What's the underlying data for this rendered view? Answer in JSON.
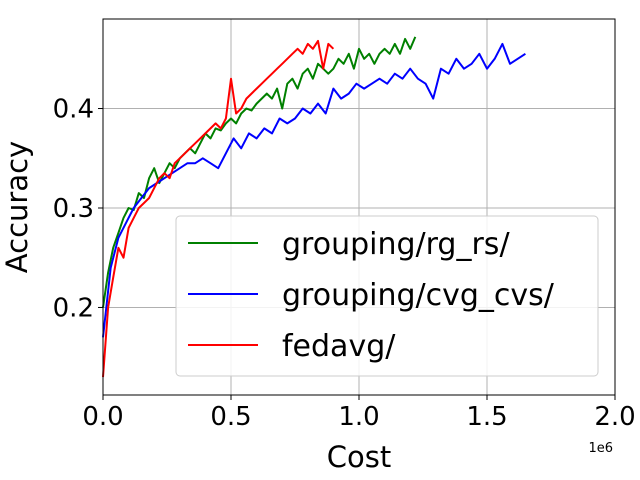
{
  "chart_data": {
    "type": "line",
    "title": "",
    "xlabel": "Cost",
    "ylabel": "Accuracy",
    "x_offset_label": "1e6",
    "xlim": [
      0.0,
      2.0
    ],
    "ylim": [
      0.112,
      0.49
    ],
    "xticks": [
      0.0,
      0.5,
      1.0,
      1.5,
      2.0
    ],
    "xtick_labels": [
      "0.0",
      "0.5",
      "1.0",
      "1.5",
      "2.0"
    ],
    "yticks": [
      0.2,
      0.3,
      0.4
    ],
    "ytick_labels": [
      "0.2",
      "0.3",
      "0.4"
    ],
    "grid": true,
    "legend_position": "lower-right",
    "series": [
      {
        "name": "grouping/rg_rs/",
        "color": "#008000",
        "x": [
          0.0,
          0.02,
          0.04,
          0.06,
          0.08,
          0.1,
          0.12,
          0.14,
          0.16,
          0.18,
          0.2,
          0.22,
          0.24,
          0.26,
          0.28,
          0.3,
          0.32,
          0.34,
          0.36,
          0.38,
          0.4,
          0.42,
          0.44,
          0.46,
          0.48,
          0.5,
          0.52,
          0.54,
          0.56,
          0.58,
          0.6,
          0.62,
          0.64,
          0.66,
          0.68,
          0.7,
          0.72,
          0.74,
          0.76,
          0.78,
          0.8,
          0.82,
          0.84,
          0.86,
          0.88,
          0.9,
          0.92,
          0.94,
          0.96,
          0.98,
          1.0,
          1.02,
          1.04,
          1.06,
          1.08,
          1.1,
          1.12,
          1.14,
          1.16,
          1.18,
          1.2,
          1.22
        ],
        "y": [
          0.2,
          0.235,
          0.26,
          0.275,
          0.29,
          0.3,
          0.298,
          0.315,
          0.31,
          0.33,
          0.34,
          0.325,
          0.335,
          0.345,
          0.34,
          0.35,
          0.355,
          0.36,
          0.355,
          0.365,
          0.375,
          0.37,
          0.38,
          0.378,
          0.385,
          0.39,
          0.385,
          0.395,
          0.4,
          0.398,
          0.405,
          0.41,
          0.415,
          0.41,
          0.42,
          0.4,
          0.425,
          0.43,
          0.42,
          0.435,
          0.44,
          0.43,
          0.445,
          0.44,
          0.435,
          0.44,
          0.45,
          0.445,
          0.455,
          0.44,
          0.46,
          0.45,
          0.455,
          0.445,
          0.455,
          0.46,
          0.455,
          0.465,
          0.455,
          0.47,
          0.46,
          0.472
        ]
      },
      {
        "name": "grouping/cvg_cvs/",
        "color": "#0000ff",
        "x": [
          0.0,
          0.03,
          0.06,
          0.09,
          0.12,
          0.15,
          0.18,
          0.21,
          0.24,
          0.27,
          0.3,
          0.33,
          0.36,
          0.39,
          0.42,
          0.45,
          0.48,
          0.51,
          0.54,
          0.57,
          0.6,
          0.63,
          0.66,
          0.69,
          0.72,
          0.75,
          0.78,
          0.81,
          0.84,
          0.87,
          0.9,
          0.93,
          0.96,
          0.99,
          1.02,
          1.05,
          1.08,
          1.11,
          1.14,
          1.17,
          1.2,
          1.23,
          1.26,
          1.29,
          1.32,
          1.35,
          1.38,
          1.41,
          1.44,
          1.47,
          1.5,
          1.53,
          1.56,
          1.59,
          1.62,
          1.65
        ],
        "y": [
          0.17,
          0.24,
          0.27,
          0.285,
          0.3,
          0.31,
          0.32,
          0.325,
          0.33,
          0.335,
          0.34,
          0.345,
          0.345,
          0.35,
          0.345,
          0.34,
          0.355,
          0.37,
          0.36,
          0.375,
          0.37,
          0.38,
          0.375,
          0.39,
          0.385,
          0.39,
          0.4,
          0.395,
          0.405,
          0.395,
          0.42,
          0.41,
          0.415,
          0.425,
          0.42,
          0.425,
          0.43,
          0.425,
          0.435,
          0.43,
          0.44,
          0.43,
          0.425,
          0.41,
          0.44,
          0.435,
          0.45,
          0.44,
          0.445,
          0.455,
          0.44,
          0.45,
          0.465,
          0.445,
          0.45,
          0.455
        ]
      },
      {
        "name": "fedavg/",
        "color": "#ff0000",
        "x": [
          0.0,
          0.02,
          0.04,
          0.06,
          0.08,
          0.1,
          0.12,
          0.14,
          0.16,
          0.18,
          0.2,
          0.22,
          0.24,
          0.26,
          0.28,
          0.3,
          0.32,
          0.34,
          0.36,
          0.38,
          0.4,
          0.42,
          0.44,
          0.46,
          0.48,
          0.5,
          0.52,
          0.54,
          0.56,
          0.58,
          0.6,
          0.62,
          0.64,
          0.66,
          0.68,
          0.7,
          0.72,
          0.74,
          0.76,
          0.78,
          0.8,
          0.82,
          0.84,
          0.86,
          0.88,
          0.9
        ],
        "y": [
          0.13,
          0.2,
          0.23,
          0.26,
          0.25,
          0.28,
          0.29,
          0.3,
          0.305,
          0.31,
          0.32,
          0.33,
          0.335,
          0.33,
          0.345,
          0.35,
          0.355,
          0.36,
          0.365,
          0.37,
          0.375,
          0.38,
          0.385,
          0.38,
          0.39,
          0.43,
          0.395,
          0.4,
          0.41,
          0.415,
          0.42,
          0.425,
          0.43,
          0.435,
          0.44,
          0.445,
          0.45,
          0.455,
          0.46,
          0.455,
          0.465,
          0.46,
          0.468,
          0.44,
          0.465,
          0.46
        ]
      }
    ]
  }
}
